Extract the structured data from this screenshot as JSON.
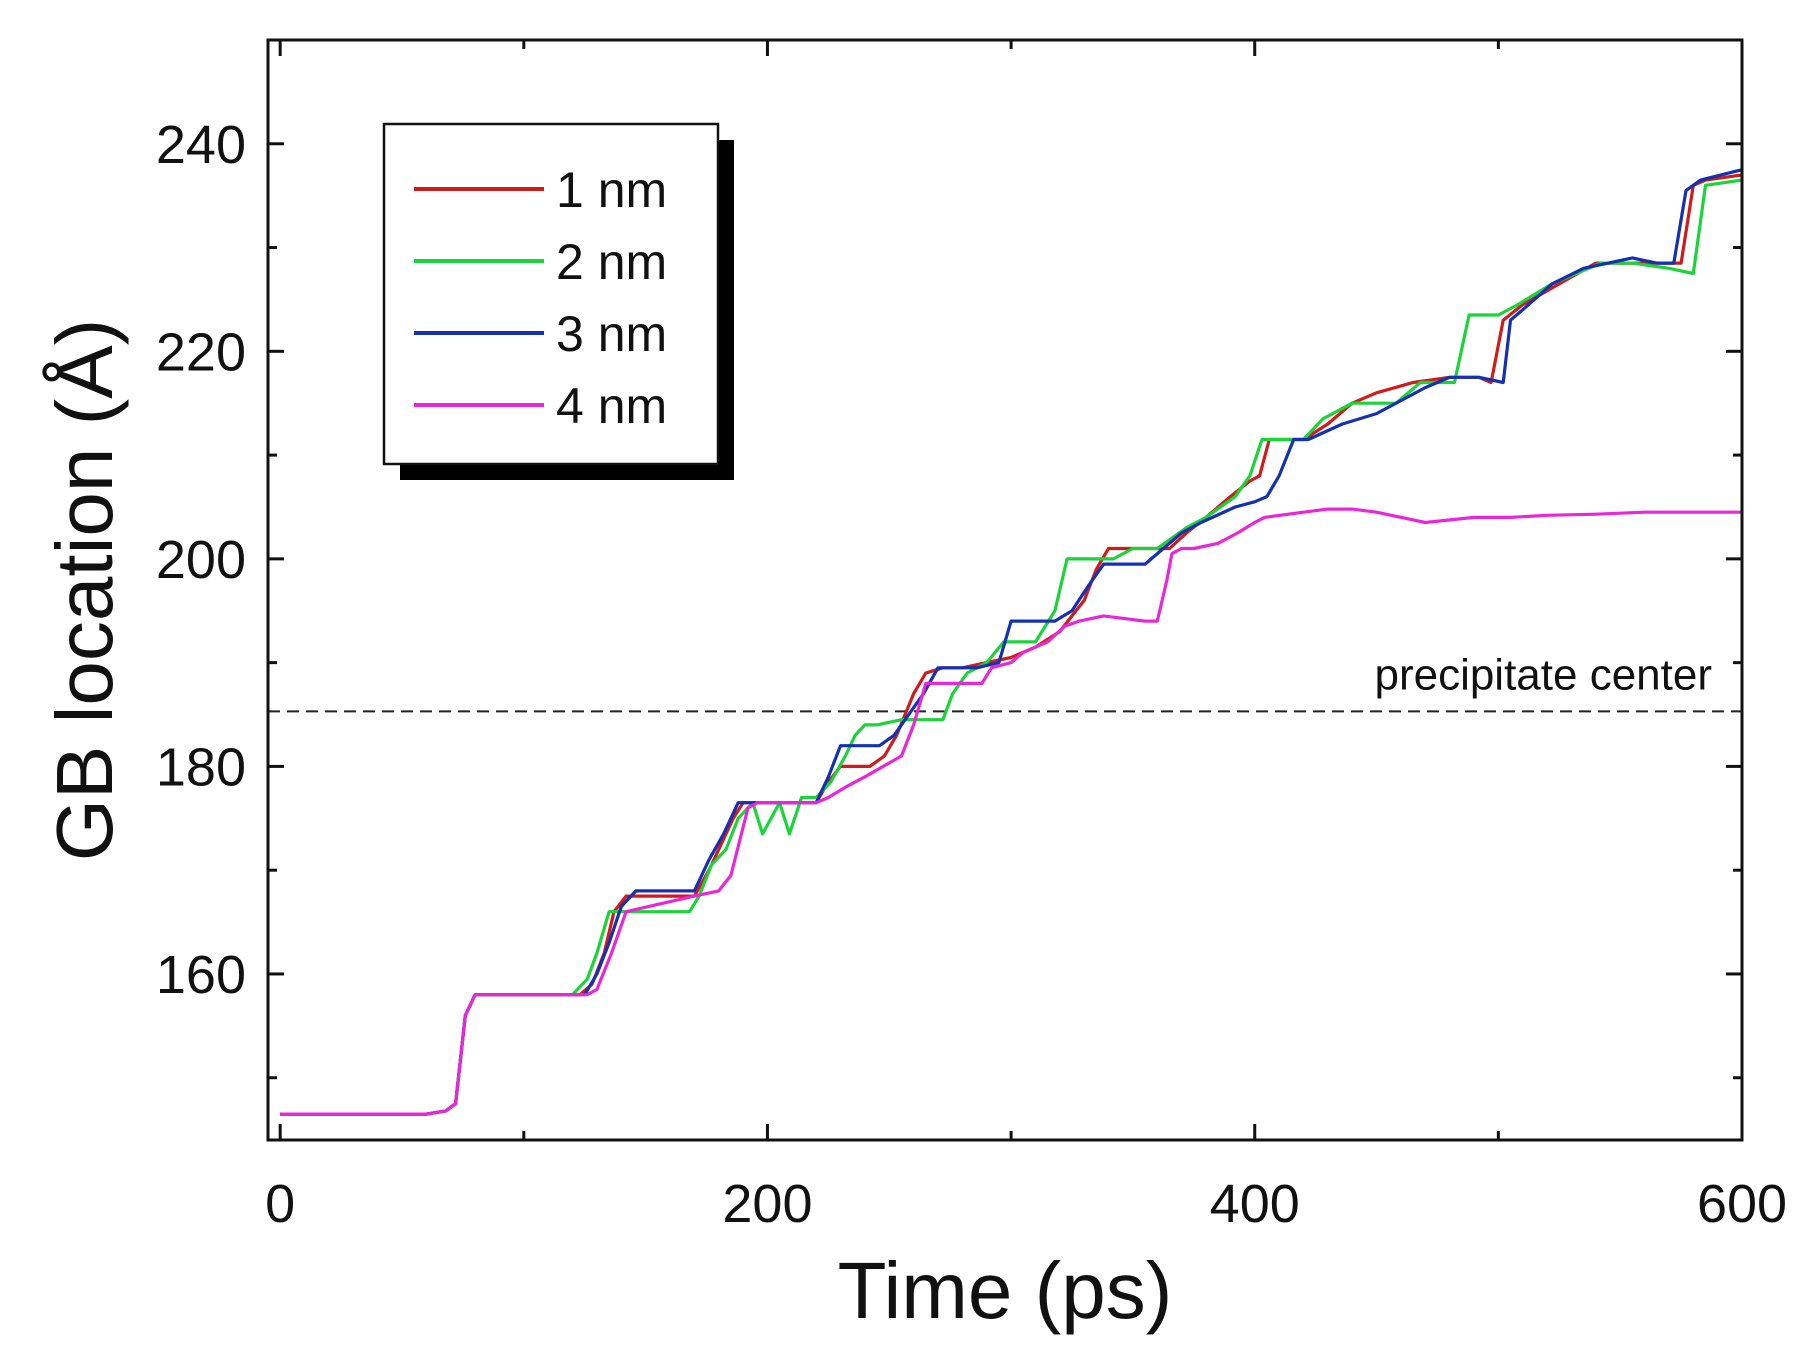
{
  "chart_data": {
    "type": "line",
    "xlabel": "Time (ps)",
    "ylabel": "GB location (Å)",
    "xlim": [
      -5,
      600
    ],
    "ylim": [
      144,
      250
    ],
    "x_ticks": [
      0,
      200,
      400,
      600
    ],
    "x_minor_ticks": [
      100,
      300,
      500
    ],
    "y_ticks": [
      160,
      180,
      200,
      220,
      240
    ],
    "y_minor_ticks": [
      150,
      170,
      190,
      210,
      230
    ],
    "x_tick_labels": [
      "0",
      "200",
      "400",
      "600"
    ],
    "y_tick_labels": [
      "160",
      "180",
      "200",
      "220",
      "240"
    ],
    "legend_position": "top-left",
    "reference_line": {
      "label": "precipitate center",
      "y": 185.3,
      "style": "dashed"
    },
    "series": [
      {
        "name": "1 nm",
        "color": "#d01b1b",
        "x": [
          0,
          60,
          68,
          72,
          76,
          80,
          123,
          128,
          133,
          137,
          142,
          170,
          176,
          180,
          186,
          190,
          220,
          225,
          230,
          242,
          248,
          253,
          260,
          265,
          272,
          280,
          290,
          300,
          310,
          320,
          325,
          330,
          335,
          340,
          360,
          365,
          372,
          380,
          390,
          398,
          402,
          406,
          420,
          430,
          440,
          450,
          465,
          480,
          492,
          497,
          502,
          510,
          525,
          540,
          555,
          575,
          580,
          585,
          600
        ],
        "y": [
          146.5,
          146.5,
          146.8,
          147.5,
          156,
          158,
          158,
          159,
          162,
          166,
          167.5,
          167.5,
          170,
          172,
          175,
          176.5,
          176.5,
          178.5,
          180,
          180,
          181,
          183,
          187,
          189,
          189.5,
          189.5,
          190,
          190.5,
          191.5,
          193,
          194.5,
          196,
          199,
          201,
          201,
          201,
          202.5,
          204,
          206,
          207.5,
          208,
          211.5,
          211.5,
          213,
          215,
          216,
          217,
          217.5,
          217.5,
          217,
          223,
          224.5,
          226.5,
          228.5,
          228.5,
          228.5,
          236,
          236.5,
          237
        ]
      },
      {
        "name": "2 nm",
        "color": "#1ad43a",
        "x": [
          0,
          60,
          68,
          72,
          76,
          80,
          120,
          126,
          130,
          135,
          140,
          168,
          172,
          177,
          183,
          188,
          194,
          198,
          205,
          209,
          214,
          220,
          226,
          232,
          236,
          240,
          245,
          255,
          262,
          272,
          276,
          282,
          290,
          297,
          310,
          318,
          323,
          333,
          342,
          350,
          360,
          372,
          380,
          392,
          398,
          403,
          420,
          428,
          440,
          458,
          468,
          482,
          488,
          495,
          500,
          508,
          522,
          532,
          542,
          555,
          570,
          580,
          585,
          600
        ],
        "y": [
          146.5,
          146.5,
          146.8,
          147.5,
          156,
          158,
          158,
          159.5,
          162,
          166,
          166,
          166,
          167.5,
          170.5,
          172,
          175,
          176.5,
          173.5,
          176.5,
          173.5,
          177,
          177,
          178.5,
          181,
          183,
          184,
          184,
          184.5,
          184.5,
          184.5,
          187,
          189,
          190,
          192,
          192,
          195,
          200,
          200,
          200,
          201,
          201,
          203,
          204,
          206,
          208,
          211.5,
          211.5,
          213.5,
          215,
          215,
          217,
          217,
          223.5,
          223.5,
          223.5,
          224.5,
          226.5,
          227.5,
          228.5,
          228.5,
          228,
          227.5,
          236,
          236.5
        ]
      },
      {
        "name": "3 nm",
        "color": "#1530b0",
        "x": [
          0,
          60,
          68,
          72,
          76,
          80,
          125,
          130,
          135,
          140,
          146,
          170,
          176,
          182,
          188,
          190,
          220,
          225,
          230,
          235,
          246,
          252,
          258,
          264,
          270,
          286,
          295,
          300,
          318,
          325,
          332,
          338,
          355,
          370,
          378,
          392,
          400,
          405,
          410,
          416,
          422,
          436,
          450,
          470,
          480,
          492,
          502,
          505,
          510,
          522,
          535,
          555,
          565,
          572,
          577,
          583,
          600
        ],
        "y": [
          146.5,
          146.5,
          146.8,
          147.5,
          156,
          158,
          158,
          160,
          163,
          166.5,
          168,
          168,
          171,
          173.5,
          176.5,
          176.5,
          176.5,
          179,
          182,
          182,
          182,
          183,
          185,
          187,
          189.5,
          189.5,
          190,
          194,
          194,
          195,
          197.5,
          199.5,
          199.5,
          202.5,
          203.5,
          205,
          205.5,
          206,
          208,
          211.5,
          211.5,
          213,
          214,
          216.5,
          217.5,
          217.5,
          217,
          223,
          224,
          226.5,
          228,
          229,
          228.5,
          228.5,
          235.5,
          236.5,
          237.5
        ]
      },
      {
        "name": "4 nm",
        "color": "#e828d8",
        "x": [
          0,
          60,
          68,
          72,
          76,
          80,
          122,
          126,
          130,
          136,
          142,
          170,
          180,
          185,
          192,
          196,
          220,
          225,
          232,
          240,
          255,
          260,
          265,
          270,
          278,
          288,
          292,
          300,
          305,
          315,
          322,
          328,
          338,
          355,
          360,
          364,
          366,
          370,
          375,
          385,
          393,
          400,
          404,
          420,
          430,
          440,
          450,
          470,
          490,
          505,
          520,
          540,
          560,
          580,
          600
        ],
        "y": [
          146.5,
          146.5,
          146.8,
          147.5,
          156,
          158,
          158,
          158,
          158.5,
          162,
          166,
          167.5,
          168,
          169.5,
          176,
          176.5,
          176.5,
          177,
          178,
          179,
          181,
          184,
          188,
          188,
          188,
          188,
          189.5,
          190,
          191,
          192,
          193.5,
          194,
          194.5,
          194,
          194,
          198,
          200.5,
          201,
          201,
          201.5,
          202.5,
          203.5,
          204,
          204.5,
          204.8,
          204.8,
          204.5,
          203.5,
          204,
          204,
          204.2,
          204.3,
          204.5,
          204.5,
          204.5
        ]
      }
    ]
  }
}
